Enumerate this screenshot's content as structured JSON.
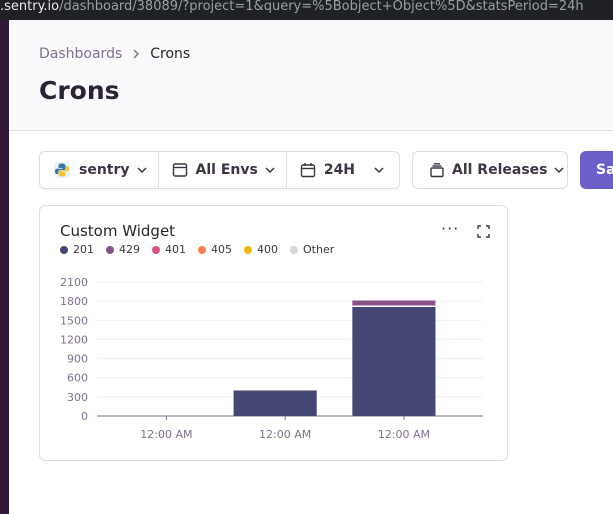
{
  "browser": {
    "url_host": ".sentry.io",
    "url_path": "/dashboard/38089/?project=1&query=%5Bobject+Object%5D&statsPeriod=24h"
  },
  "breadcrumbs": {
    "parent": "Dashboards",
    "current": "Crons"
  },
  "page": {
    "title": "Crons"
  },
  "filters": {
    "project": "sentry",
    "environment": "All Envs",
    "period": "24H",
    "releases": "All Releases",
    "save_label": "Sa"
  },
  "widget": {
    "title": "Custom Widget",
    "menu_glyph": "···",
    "legend": [
      {
        "label": "201",
        "color": "#444674"
      },
      {
        "label": "429",
        "color": "#895289"
      },
      {
        "label": "401",
        "color": "#d6567f"
      },
      {
        "label": "405",
        "color": "#f38150"
      },
      {
        "label": "400",
        "color": "#f2b712"
      },
      {
        "label": "Other",
        "color": "#d8d5dc"
      }
    ]
  },
  "chart_data": {
    "type": "bar",
    "stacked": true,
    "x_tick_labels": [
      "12:00 AM",
      "12:00 AM",
      "12:00 AM"
    ],
    "y_ticks": [
      0,
      300,
      600,
      900,
      1200,
      1500,
      1800,
      2100
    ],
    "ylim": [
      0,
      2100
    ],
    "grid": true,
    "bins": 3,
    "series": [
      {
        "name": "201",
        "color": "#444674",
        "values": [
          0,
          400,
          1720
        ]
      },
      {
        "name": "429",
        "color": "#895289",
        "values": [
          0,
          0,
          90
        ]
      }
    ],
    "title": "",
    "xlabel": "",
    "ylabel": ""
  }
}
